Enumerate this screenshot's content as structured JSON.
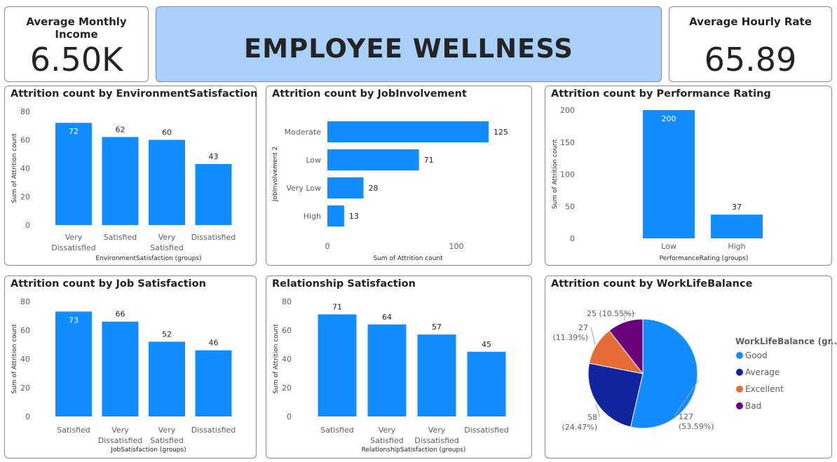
{
  "kpis": {
    "income_title": "Average Monthly Income",
    "income_value": "6.50K",
    "rate_title": "Average Hourly Rate",
    "rate_value": "65.89"
  },
  "header": {
    "title": "EMPLOYEE WELLNESS"
  },
  "colors": {
    "bar": "#118dff",
    "title_bg": "#a9d1fb",
    "good": "#118dff",
    "average": "#12239e",
    "excellent": "#e66c37",
    "bad": "#6b007b"
  },
  "charts": {
    "env": {
      "title": "Attrition count by EnvironmentSatisfaction",
      "chart_data": {
        "type": "bar",
        "categories": [
          [
            "Very",
            "Dissatisfied"
          ],
          [
            "Satisfied"
          ],
          [
            "Very",
            "Satisfied"
          ],
          [
            "Dissatisfied"
          ]
        ],
        "values": [
          72,
          62,
          60,
          43
        ],
        "ylabel": "Sum of Attrition count",
        "xlabel": "EnvironmentSatisfaction (groups)",
        "ylim": [
          0,
          80
        ],
        "yticks": [
          0,
          20,
          40,
          60,
          80
        ]
      }
    },
    "job_involvement": {
      "title": "Attrition count by JobInvolvement",
      "chart_data": {
        "type": "bar",
        "orientation": "horizontal",
        "categories": [
          "Moderate",
          "Low",
          "Very Low",
          "High"
        ],
        "values": [
          125,
          71,
          28,
          13
        ],
        "ylabel": "JobInvolvement 2",
        "xlabel": "Sum of Attrition count",
        "xlim": [
          0,
          125
        ],
        "xticks": [
          0,
          100
        ]
      }
    },
    "performance": {
      "title": "Attrition count by Performance Rating",
      "chart_data": {
        "type": "bar",
        "categories": [
          [
            "Low"
          ],
          [
            "High"
          ]
        ],
        "values": [
          200,
          37
        ],
        "ylabel": "Sum of Attrition count",
        "xlabel": "PerformanceRating (groups)",
        "ylim": [
          0,
          200
        ],
        "yticks": [
          0,
          50,
          100,
          150,
          200
        ]
      }
    },
    "job_satisfaction": {
      "title": "Attrition count by Job Satisfaction",
      "chart_data": {
        "type": "bar",
        "categories": [
          [
            "Satisfied"
          ],
          [
            "Very",
            "Dissatisfied"
          ],
          [
            "Very",
            "Satisfied"
          ],
          [
            "Dissatisfied"
          ]
        ],
        "values": [
          73,
          66,
          52,
          46
        ],
        "ylabel": "Sum of Attrition count",
        "xlabel": "JobSatisfaction (groups)",
        "ylim": [
          0,
          80
        ],
        "yticks": [
          0,
          20,
          40,
          60,
          80
        ]
      }
    },
    "relationship": {
      "title": "Relationship Satisfaction",
      "chart_data": {
        "type": "bar",
        "categories": [
          [
            "Satisfied"
          ],
          [
            "Very",
            "Satisfied"
          ],
          [
            "Very",
            "Dissatisfied"
          ],
          [
            "Dissatisfied"
          ]
        ],
        "values": [
          71,
          64,
          57,
          45
        ],
        "ylabel": "Sum of Attrition count",
        "xlabel": "RelationshipSatisfaction (groups)",
        "ylim": [
          0,
          80
        ],
        "yticks": [
          0,
          20,
          40,
          60,
          80
        ]
      }
    },
    "worklife": {
      "title": "Attrition count by WorkLifeBalance",
      "chart_data": {
        "type": "pie",
        "legend_title": "WorkLifeBalance (gr...",
        "legend_placement": "right",
        "slices": [
          {
            "name": "Good",
            "value": 127,
            "pct": "(53.59%)",
            "color": "#118dff"
          },
          {
            "name": "Average",
            "value": 58,
            "pct": "(24.47%)",
            "color": "#12239e"
          },
          {
            "name": "Excellent",
            "value": 27,
            "pct": "(11.39%)",
            "color": "#e66c37"
          },
          {
            "name": "Bad",
            "value": 25,
            "pct": "(10.55%)",
            "color": "#6b007b"
          }
        ]
      }
    }
  }
}
